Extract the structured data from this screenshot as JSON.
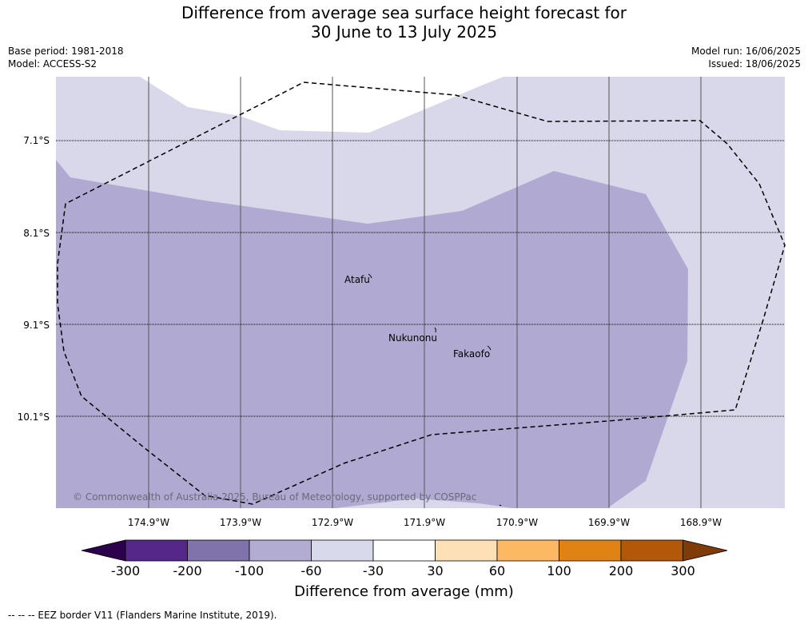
{
  "title": {
    "line1": "Difference from average sea surface height forecast for",
    "line2": "30 June to 13 July 2025"
  },
  "meta": {
    "base_period": "Base period: 1981-2018",
    "model": "Model: ACCESS-S2",
    "model_run": "Model run: 16/06/2025",
    "issued": "Issued: 18/06/2025"
  },
  "map": {
    "lat_labels": [
      "7.1°S",
      "8.1°S",
      "9.1°S",
      "10.1°S"
    ],
    "lon_labels": [
      "174.9°W",
      "173.9°W",
      "172.9°W",
      "171.9°W",
      "170.9°W",
      "169.9°W",
      "168.9°W"
    ],
    "places": [
      {
        "name": "Atafu"
      },
      {
        "name": "Nukunonu"
      },
      {
        "name": "Fakaofo"
      }
    ],
    "colors": {
      "band_-60_-30": "#d8d8ea",
      "band_-100_-60": "#b0aad2",
      "eez_line": "#000000"
    },
    "copyright": "© Commonwealth of Australia 2025, Bureau of Meteorology, supported by COSPPac"
  },
  "colorbar": {
    "title": "Difference from average (mm)",
    "ticks": [
      "-300",
      "-200",
      "-100",
      "-60",
      "-30",
      "30",
      "60",
      "100",
      "200",
      "300"
    ],
    "colors": [
      "#2d004b",
      "#542788",
      "#8073ac",
      "#b2abd2",
      "#d8daeb",
      "#ffffff",
      "#fee0b6",
      "#fdb863",
      "#e08214",
      "#b35806",
      "#7f3b08"
    ]
  },
  "footnote": "--  --  -- EEZ border V11 (Flanders Marine Institute, 2019)."
}
